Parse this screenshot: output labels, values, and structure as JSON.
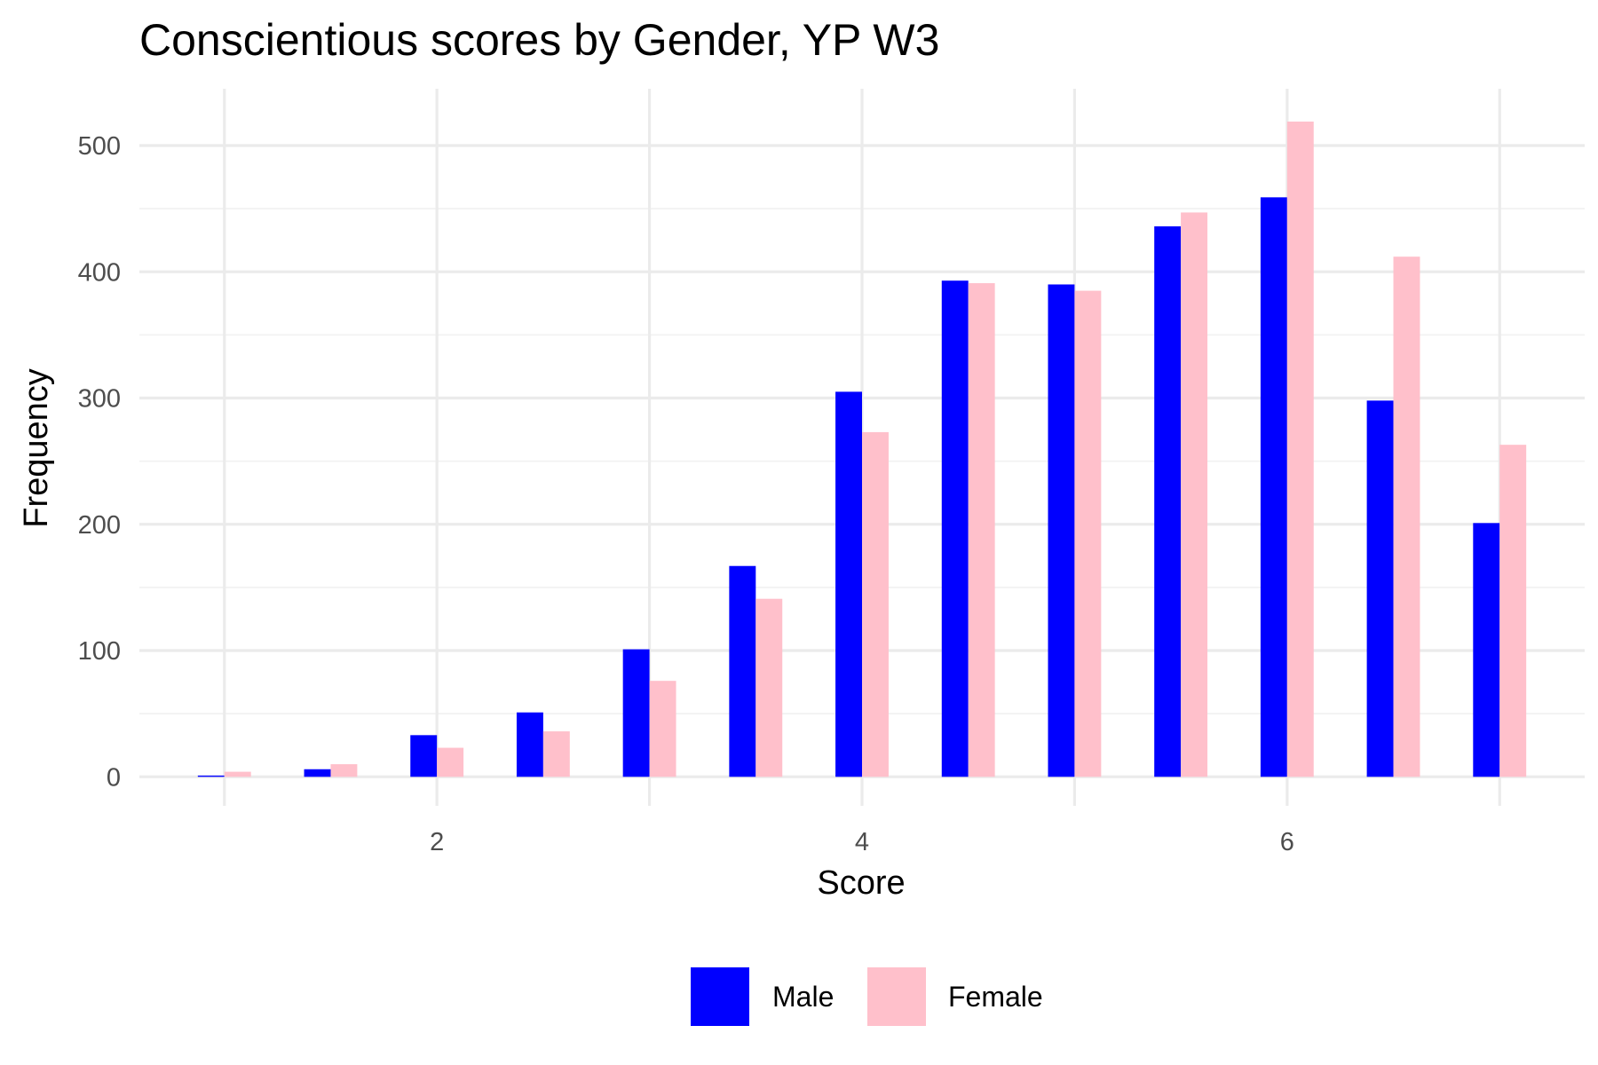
{
  "chart_data": {
    "type": "bar",
    "title": "Conscientious scores by Gender, YP W3",
    "xlabel": "Score",
    "ylabel": "Frequency",
    "x": [
      1,
      1.5,
      2,
      2.5,
      3,
      3.5,
      4,
      4.5,
      5,
      5.5,
      6,
      6.5,
      7
    ],
    "series": [
      {
        "name": "Male",
        "color": "#0000ff",
        "values": [
          1,
          6,
          33,
          51,
          101,
          167,
          305,
          393,
          390,
          436,
          459,
          298,
          201
        ]
      },
      {
        "name": "Female",
        "color": "#ffc0cb",
        "values": [
          4,
          10,
          23,
          36,
          76,
          141,
          273,
          391,
          385,
          447,
          519,
          412,
          263
        ]
      }
    ],
    "xlim": [
      0.6,
      7.4
    ],
    "ylim": [
      -23,
      545
    ],
    "x_ticks": [
      2,
      4,
      6
    ],
    "y_ticks": [
      0,
      100,
      200,
      300,
      400,
      500
    ],
    "grid": true,
    "legend_position": "bottom"
  }
}
